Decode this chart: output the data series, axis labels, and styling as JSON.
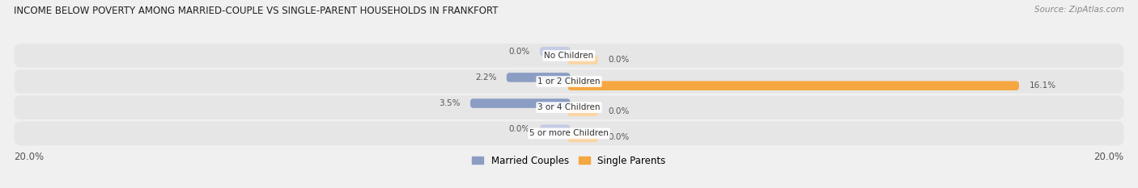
{
  "title": "INCOME BELOW POVERTY AMONG MARRIED-COUPLE VS SINGLE-PARENT HOUSEHOLDS IN FRANKFORT",
  "source": "Source: ZipAtlas.com",
  "categories": [
    "No Children",
    "1 or 2 Children",
    "3 or 4 Children",
    "5 or more Children"
  ],
  "married_values": [
    0.0,
    2.2,
    3.5,
    0.0
  ],
  "single_values": [
    0.0,
    16.1,
    0.0,
    0.0
  ],
  "married_color": "#8B9DC3",
  "married_color_light": "#C5CBE3",
  "single_color": "#F5A742",
  "single_color_light": "#FAD5A5",
  "axis_max": 20.0,
  "bar_height": 0.28,
  "bg_color": "#f0f0f0",
  "row_bg": "#e6e6e6",
  "legend_married": "Married Couples",
  "legend_single": "Single Parents",
  "figsize": [
    14.06,
    2.33
  ],
  "dpi": 100
}
